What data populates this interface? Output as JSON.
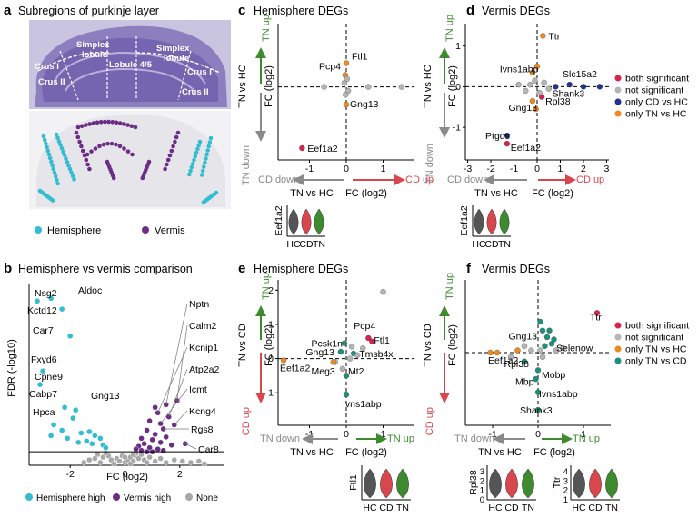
{
  "colors": {
    "hemisphere": "#34bdd0",
    "vermis": "#6c2d86",
    "none": "#a8a8a8",
    "both": "#d6244c",
    "ns": "#b5b5b5",
    "cd_hc": "#23318f",
    "tn_hc": "#ec8b21",
    "tn_cd": "#1f8f7d",
    "green": "#3d8a2f",
    "red": "#d8464e",
    "grey": "#8a8a8a",
    "violin_dark": "#555555"
  },
  "panels": {
    "a": {
      "letter": "a",
      "title": "Subregions of purkinje layer",
      "regions": [
        "Crus I",
        "Simplex\nlobule",
        "Lobule 4/5",
        "Simplex\nlobule",
        "Crus I",
        "Crus II",
        "Crus II"
      ],
      "legend": [
        "Hemisphere",
        "Vermis"
      ]
    },
    "b": {
      "letter": "b",
      "title": "Hemisphere vs vermis comparison",
      "xlabel": "FC (log2)",
      "ylabel": "FDR (-log10)",
      "legend": [
        "Hemisphere high",
        "Vermis high",
        "None"
      ]
    },
    "c": {
      "letter": "c",
      "title": "Hemisphere DEGs"
    },
    "d": {
      "letter": "d",
      "title": "Vermis DEGs"
    },
    "e": {
      "letter": "e",
      "title": "Hemisphere DEGs"
    },
    "f": {
      "letter": "f",
      "title": "Vermis DEGs"
    }
  },
  "labels": {
    "tn_up": "TN up",
    "tn_down": "TN down",
    "cd_up": "CD up",
    "cd_down": "CD down",
    "tn_vs_hc": "TN vs HC",
    "tn_vs_cd": "TN vs CD",
    "fc_log2": "FC (log2)"
  },
  "legends": {
    "d": [
      "both significant",
      "not significant",
      "only CD vs HC",
      "only TN vs HC"
    ],
    "f": [
      "both significant",
      "not significant",
      "only TN vs HC",
      "only TN vs CD"
    ]
  },
  "violins": {
    "c": {
      "gene": "Eef1a2",
      "groups": [
        "HC",
        "CD",
        "TN"
      ]
    },
    "d": {
      "gene": "Eef1a2",
      "groups": [
        "HC",
        "CD",
        "TN"
      ]
    },
    "e": {
      "gene": "Ftl1",
      "groups": [
        "HC",
        "CD",
        "TN"
      ]
    },
    "f1": {
      "gene": "Rpl38",
      "groups": [
        "HC",
        "CD",
        "TN"
      ],
      "yticks": [
        "0",
        "1",
        "2",
        "3"
      ]
    },
    "f2": {
      "gene": "Ttr",
      "groups": [
        "HC",
        "CD",
        "TN"
      ],
      "yticks": [
        "1",
        "2",
        "3",
        "4"
      ]
    }
  },
  "chart_data": [
    {
      "id": "b",
      "type": "scatter",
      "title": "Hemisphere vs vermis comparison",
      "xlabel": "FC (log2)",
      "ylabel": "FDR (-log10)",
      "xlim": [
        -3.5,
        3.6
      ],
      "ylim": [
        0,
        13.5
      ],
      "xticks": [
        -2,
        0,
        2
      ],
      "yticks": [],
      "series": [
        {
          "name": "Hemisphere high",
          "points": [
            [
              -2.7,
              12.4
            ],
            [
              -3.2,
              12.2
            ],
            [
              -2.3,
              11.6
            ],
            [
              -2.0,
              9.6
            ],
            [
              -3.0,
              7.0
            ],
            [
              -3.1,
              6.0
            ],
            [
              -2.2,
              4.3
            ],
            [
              -1.8,
              4.1
            ],
            [
              -1.9,
              3.5
            ],
            [
              -2.6,
              3.0
            ],
            [
              -2.3,
              2.6
            ],
            [
              -1.6,
              2.4
            ],
            [
              -1.3,
              2.5
            ],
            [
              -1.1,
              2.2
            ],
            [
              -0.9,
              2.0
            ],
            [
              -1.4,
              1.8
            ],
            [
              -2.1,
              2.0
            ],
            [
              -1.7,
              1.7
            ],
            [
              -1.2,
              1.6
            ],
            [
              -0.8,
              1.5
            ],
            [
              -2.7,
              2.2
            ],
            [
              -0.7,
              1.3
            ]
          ]
        },
        {
          "name": "Vermis high",
          "points": [
            [
              1.1,
              4.3
            ],
            [
              1.5,
              4.5
            ],
            [
              1.9,
              4.8
            ],
            [
              1.2,
              3.9
            ],
            [
              1.6,
              3.6
            ],
            [
              0.9,
              3.3
            ],
            [
              1.3,
              3.1
            ],
            [
              1.8,
              3.0
            ],
            [
              1.4,
              2.7
            ],
            [
              0.8,
              2.6
            ],
            [
              1.1,
              2.3
            ],
            [
              1.5,
              2.1
            ],
            [
              0.6,
              2.0
            ],
            [
              1.0,
              1.9
            ],
            [
              0.7,
              1.6
            ],
            [
              1.3,
              1.7
            ],
            [
              0.5,
              1.4
            ],
            [
              0.9,
              1.3
            ],
            [
              1.7,
              1.5
            ],
            [
              0.4,
              1.2
            ],
            [
              1.2,
              1.2
            ],
            [
              0.6,
              1.1
            ],
            [
              2.2,
              1.6
            ],
            [
              0.8,
              1.0
            ],
            [
              1.0,
              1.0
            ],
            [
              1.4,
              1.1
            ]
          ]
        },
        {
          "name": "None",
          "points": [
            [
              -1.0,
              0.8
            ],
            [
              -0.8,
              0.6
            ],
            [
              -0.6,
              0.7
            ],
            [
              -0.5,
              0.4
            ],
            [
              -0.3,
              0.5
            ],
            [
              -0.2,
              0.3
            ],
            [
              0.0,
              0.2
            ],
            [
              0.1,
              0.4
            ],
            [
              0.2,
              0.6
            ],
            [
              0.3,
              0.3
            ],
            [
              0.4,
              0.7
            ],
            [
              0.5,
              0.5
            ],
            [
              0.6,
              0.8
            ],
            [
              0.7,
              0.4
            ],
            [
              0.9,
              0.6
            ],
            [
              1.1,
              0.3
            ],
            [
              1.3,
              0.5
            ],
            [
              -1.3,
              0.4
            ],
            [
              -1.5,
              0.2
            ],
            [
              -0.9,
              0.2
            ],
            [
              -0.4,
              0.1
            ],
            [
              0.2,
              0.1
            ],
            [
              0.8,
              0.2
            ],
            [
              1.5,
              0.2
            ],
            [
              1.8,
              0.4
            ],
            [
              2.1,
              0.3
            ],
            [
              2.4,
              0.2
            ],
            [
              2.7,
              0.3
            ],
            [
              2.9,
              0.1
            ],
            [
              -0.1,
              0.7
            ],
            [
              0.4,
              0.9
            ],
            [
              -0.7,
              0.9
            ],
            [
              0.0,
              0.6
            ],
            [
              -1.1,
              0.5
            ],
            [
              0.3,
              0.8
            ]
          ]
        }
      ],
      "annotations": [
        "Nsg2",
        "Aldoc",
        "Kctd12",
        "Car7",
        "Fxyd6",
        "Cpne9",
        "Cabp7",
        "Gng13",
        "Hpca",
        "Nptn",
        "Calm2",
        "Kcnip1",
        "Atp2a2",
        "Icmt",
        "Kcng4",
        "Rgs8",
        "Car8"
      ]
    },
    {
      "id": "c",
      "type": "scatter",
      "title": "Hemisphere DEGs",
      "xlabel": "TN vs HC  FC (log2)",
      "ylabel": "TN vs HC  FC (log2)",
      "xlim": [
        -1.85,
        1.85
      ],
      "ylim": [
        -1.85,
        1.6
      ],
      "xticks": [
        -1,
        0,
        1
      ],
      "yticks": [],
      "points": [
        [
          -1.2,
          -1.55,
          "both"
        ],
        [
          0.0,
          0.6,
          "tn_hc"
        ],
        [
          -0.03,
          0.3,
          "tn_hc"
        ],
        [
          0.0,
          -0.45,
          "tn_hc"
        ],
        [
          -0.05,
          0.1,
          "ns"
        ],
        [
          0.05,
          -0.1,
          "ns"
        ],
        [
          0.02,
          0.2,
          "ns"
        ],
        [
          -0.02,
          -0.2,
          "ns"
        ],
        [
          0.6,
          0.0,
          "ns"
        ],
        [
          1.5,
          0.0,
          "ns"
        ],
        [
          -0.6,
          0.0,
          "ns"
        ]
      ],
      "annotations": [
        "Ftl1",
        "Pcp4",
        "Gng13",
        "Eef1a2"
      ]
    },
    {
      "id": "d",
      "type": "scatter",
      "title": "Vermis DEGs",
      "xlabel": "TN vs HC  FC (log2)",
      "ylabel": "TN vs HC  FC (log2)",
      "xlim": [
        -3.1,
        3.1
      ],
      "ylim": [
        -1.8,
        1.55
      ],
      "xticks": [
        -3,
        -2,
        -1,
        0,
        1,
        2,
        3
      ],
      "yticks": [
        -1,
        0,
        1
      ],
      "points": [
        [
          0.25,
          1.25,
          "tn_hc"
        ],
        [
          -1.3,
          -1.2,
          "cd_hc"
        ],
        [
          -1.3,
          -1.4,
          "both"
        ],
        [
          1.4,
          0.05,
          "cd_hc"
        ],
        [
          2.0,
          0.0,
          "cd_hc"
        ],
        [
          2.7,
          0.0,
          "cd_hc"
        ],
        [
          0.8,
          0.0,
          "cd_hc"
        ],
        [
          -0.2,
          0.35,
          "tn_hc"
        ],
        [
          -0.2,
          -0.35,
          "tn_hc"
        ],
        [
          0.2,
          -0.25,
          "both"
        ],
        [
          -0.3,
          0.05,
          "ns"
        ],
        [
          0.3,
          0.1,
          "ns"
        ],
        [
          -0.5,
          -0.1,
          "ns"
        ],
        [
          0.5,
          -0.05,
          "ns"
        ],
        [
          -0.1,
          0.15,
          "ns"
        ],
        [
          0.1,
          -0.15,
          "ns"
        ],
        [
          -0.8,
          0.05,
          "ns"
        ],
        [
          -0.05,
          -0.55,
          "tn_hc"
        ],
        [
          0.0,
          0.5,
          "tn_hc"
        ]
      ],
      "annotations": [
        "Ttr",
        "Ivns1abp",
        "Slc15a2",
        "Shank3",
        "Gng13",
        "Rpl38",
        "Ptgds",
        "Eef1a2"
      ]
    },
    {
      "id": "e",
      "type": "scatter",
      "title": "Hemisphere DEGs",
      "xlabel": "TN vs HC  FC (log2)",
      "ylabel": "TN vs CD  FC (log2)",
      "xlim": [
        -1.85,
        1.85
      ],
      "ylim": [
        -1.95,
        2.3
      ],
      "xticks": [
        -1,
        0,
        1
      ],
      "yticks": [
        -1,
        0,
        1,
        2
      ],
      "points": [
        [
          1.0,
          1.95,
          "ns"
        ],
        [
          0.6,
          0.6,
          "both"
        ],
        [
          0.7,
          0.5,
          "both"
        ],
        [
          -1.7,
          -0.05,
          "tn_hc"
        ],
        [
          0.0,
          -0.5,
          "tn_cd"
        ],
        [
          0.0,
          -1.05,
          "tn_cd"
        ],
        [
          -0.15,
          0.2,
          "tn_cd"
        ],
        [
          0.2,
          0.15,
          "tn_cd"
        ],
        [
          -0.05,
          0.45,
          "tn_cd"
        ],
        [
          0.1,
          0.0,
          "ns"
        ],
        [
          0.3,
          0.1,
          "ns"
        ],
        [
          -0.3,
          -0.1,
          "ns"
        ],
        [
          0.45,
          0.3,
          "ns"
        ],
        [
          -0.1,
          -0.3,
          "ns"
        ],
        [
          0.15,
          0.35,
          "ns"
        ],
        [
          -0.35,
          -0.1,
          "tn_hc"
        ]
      ],
      "annotations": [
        "Pcp4",
        "Ftl1",
        "Pcsk1n",
        "Tmsb4x",
        "Gng13",
        "Eef1a2",
        "Meg3",
        "Mt2",
        "Ivns1abp"
      ]
    },
    {
      "id": "f",
      "type": "scatter",
      "title": "Vermis DEGs",
      "xlabel": "TN vs HC  FC (log2)",
      "ylabel": "TN vs CD  FC (log2)",
      "xlim": [
        -1.6,
        1.6
      ],
      "ylim": [
        -1.65,
        1.65
      ],
      "xticks": [
        -1,
        0,
        1
      ],
      "yticks": [],
      "points": [
        [
          1.3,
          0.9,
          "both"
        ],
        [
          0.1,
          0.5,
          "tn_cd"
        ],
        [
          0.2,
          0.35,
          "tn_cd"
        ],
        [
          0.3,
          0.2,
          "tn_cd"
        ],
        [
          0.25,
          0.5,
          "tn_cd"
        ],
        [
          0.15,
          0.15,
          "tn_cd"
        ],
        [
          0.35,
          0.3,
          "tn_cd"
        ],
        [
          0.05,
          0.7,
          "tn_cd"
        ],
        [
          0.0,
          -0.4,
          "tn_cd"
        ],
        [
          -0.05,
          -0.6,
          "tn_cd"
        ],
        [
          0.0,
          -0.9,
          "tn_cd"
        ],
        [
          0.0,
          -1.3,
          "tn_cd"
        ],
        [
          -0.45,
          0.05,
          "tn_hc"
        ],
        [
          -0.9,
          0.0,
          "tn_hc"
        ],
        [
          -1.05,
          0.0,
          "tn_hc"
        ],
        [
          -0.3,
          -0.2,
          "tn_cd"
        ],
        [
          -0.3,
          0.15,
          "ns"
        ],
        [
          0.1,
          -0.1,
          "ns"
        ],
        [
          -0.15,
          0.05,
          "ns"
        ],
        [
          0.4,
          0.05,
          "ns"
        ],
        [
          0.55,
          0.1,
          "ns"
        ],
        [
          -0.6,
          -0.1,
          "ns"
        ],
        [
          0.05,
          0.05,
          "ns"
        ]
      ],
      "annotations": [
        "Ttr",
        "Gng13",
        "Selenow",
        "Eef1a2",
        "Rpl38",
        "Mbp",
        "Mobp",
        "Ivns1abp",
        "Shank3"
      ]
    }
  ]
}
